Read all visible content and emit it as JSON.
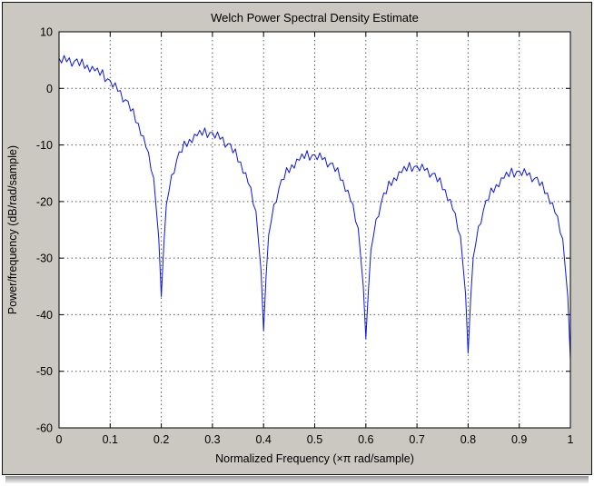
{
  "figure": {
    "bg_color": "#cbc8c2",
    "axes_bg": "#ffffff",
    "border_color": "#000000",
    "grid_color": "#5a5a5a",
    "text_color": "#000000"
  },
  "chart_data": {
    "type": "line",
    "title": "Welch Power Spectral Density Estimate",
    "xlabel": "Normalized Frequency  (×π rad/sample)",
    "ylabel": "Power/frequency (dB/rad/sample)",
    "xlim": [
      0,
      1
    ],
    "ylim": [
      -60,
      10
    ],
    "xticks": [
      0,
      0.1,
      0.2,
      0.3,
      0.4,
      0.5,
      0.6,
      0.7,
      0.8,
      0.9,
      1
    ],
    "xtick_labels": [
      "0",
      "0.1",
      "0.2",
      "0.3",
      "0.4",
      "0.5",
      "0.6",
      "0.7",
      "0.8",
      "0.9",
      "1"
    ],
    "yticks": [
      -60,
      -50,
      -40,
      -30,
      -20,
      -10,
      0,
      10
    ],
    "ytick_labels": [
      "-60",
      "-50",
      "-40",
      "-30",
      "-20",
      "-10",
      "0",
      "10"
    ],
    "grid": true,
    "grid_style": "dotted",
    "legend": null,
    "series": [
      {
        "name": "welch-psd-estimate",
        "color": "#0b16e0",
        "x_start": 0,
        "x_step": 0.005,
        "values": [
          5.3,
          4.5,
          5.8,
          4.7,
          5.4,
          3.9,
          4.8,
          5.2,
          4.0,
          5.2,
          3.5,
          4.1,
          2.9,
          3.9,
          3.1,
          3.6,
          2.3,
          3.3,
          1.2,
          1.7,
          1.4,
          0.2,
          1.0,
          -0.5,
          -0.4,
          -2.4,
          -2.0,
          -2.3,
          -4.0,
          -3.6,
          -6.0,
          -6.2,
          -8.3,
          -8.4,
          -10.4,
          -11.3,
          -14.4,
          -15.8,
          -21.2,
          -26.5,
          -36.8,
          -27.6,
          -20.5,
          -18.2,
          -15.3,
          -15.0,
          -12.7,
          -11.2,
          -11.3,
          -9.3,
          -10.3,
          -9.0,
          -9.6,
          -8.1,
          -8.4,
          -7.4,
          -8.3,
          -7.0,
          -8.7,
          -7.8,
          -7.8,
          -8.8,
          -7.7,
          -9.0,
          -8.6,
          -10.4,
          -9.8,
          -9.8,
          -11.4,
          -10.7,
          -13.0,
          -13.0,
          -15.0,
          -14.9,
          -16.8,
          -17.5,
          -20.5,
          -21.7,
          -27.0,
          -32.2,
          -42.8,
          -33.1,
          -25.9,
          -23.5,
          -20.5,
          -20.1,
          -17.7,
          -16.1,
          -16.1,
          -14.0,
          -14.9,
          -13.5,
          -14.1,
          -12.5,
          -12.7,
          -11.6,
          -12.4,
          -11.0,
          -12.7,
          -11.8,
          -11.7,
          -12.6,
          -11.4,
          -12.6,
          -12.2,
          -13.9,
          -13.3,
          -13.2,
          -14.7,
          -14.0,
          -16.2,
          -16.2,
          -18.2,
          -18.0,
          -19.8,
          -20.5,
          -23.5,
          -24.7,
          -29.9,
          -35.0,
          -44.2,
          -35.8,
          -28.6,
          -26.1,
          -23.1,
          -22.6,
          -20.2,
          -18.5,
          -18.6,
          -16.4,
          -17.2,
          -15.8,
          -16.3,
          -14.7,
          -14.9,
          -13.8,
          -14.6,
          -13.1,
          -14.7,
          -13.8,
          -13.7,
          -14.6,
          -13.4,
          -14.5,
          -14.1,
          -15.7,
          -15.1,
          -15.0,
          -16.5,
          -15.8,
          -17.9,
          -17.9,
          -19.8,
          -19.6,
          -21.4,
          -22.1,
          -25.0,
          -26.1,
          -31.3,
          -36.4,
          -46.8,
          -37.2,
          -29.9,
          -27.5,
          -24.4,
          -23.9,
          -21.5,
          -19.8,
          -19.7,
          -17.6,
          -18.4,
          -17.0,
          -17.4,
          -15.8,
          -15.9,
          -14.8,
          -15.6,
          -14.1,
          -15.7,
          -14.7,
          -14.6,
          -15.4,
          -14.2,
          -15.4,
          -14.9,
          -16.5,
          -15.9,
          -15.7,
          -17.2,
          -16.5,
          -18.6,
          -18.5,
          -20.4,
          -20.2,
          -22.0,
          -22.6,
          -25.5,
          -26.6,
          -31.8,
          -36.9,
          -47.9
        ]
      }
    ]
  }
}
